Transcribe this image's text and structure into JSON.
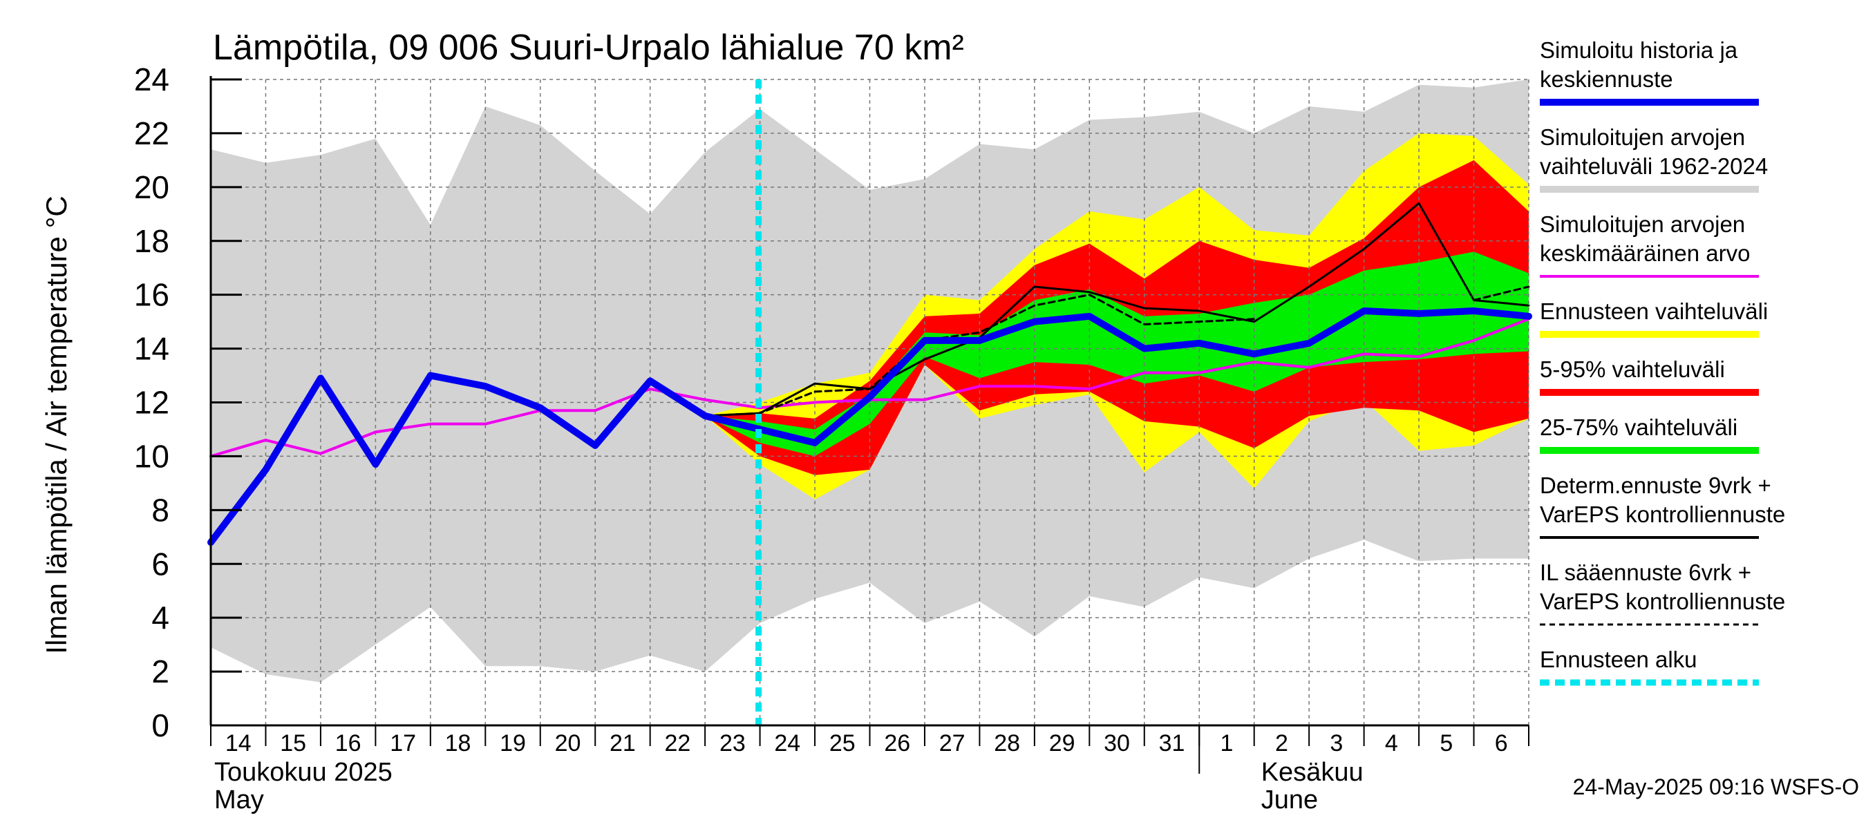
{
  "chart_data": {
    "type": "line",
    "title": "Lämpötila, 09 006 Suuri-Urpalo lähialue 70 km²",
    "ylabel": "Ilman lämpötila / Air temperature   °C",
    "ylim": [
      0,
      24
    ],
    "yticks": [
      0,
      2,
      4,
      6,
      8,
      10,
      12,
      14,
      16,
      18,
      20,
      22,
      24
    ],
    "x_tick_labels": [
      "14",
      "15",
      "16",
      "17",
      "18",
      "19",
      "20",
      "21",
      "22",
      "23",
      "24",
      "25",
      "26",
      "27",
      "28",
      "29",
      "30",
      "31",
      "1",
      "2",
      "3",
      "4",
      "5",
      "6"
    ],
    "month_labels": [
      {
        "fi": "Toukokuu  2025",
        "en": "May"
      },
      {
        "fi": "Kesäkuu",
        "en": "June"
      }
    ],
    "x": [
      "2025-05-14",
      "2025-05-15",
      "2025-05-16",
      "2025-05-17",
      "2025-05-18",
      "2025-05-19",
      "2025-05-20",
      "2025-05-21",
      "2025-05-22",
      "2025-05-23",
      "2025-05-24",
      "2025-05-25",
      "2025-05-26",
      "2025-05-27",
      "2025-05-28",
      "2025-05-29",
      "2025-05-30",
      "2025-05-31",
      "2025-06-01",
      "2025-06-02",
      "2025-06-03",
      "2025-06-04",
      "2025-06-05",
      "2025-06-06",
      "2025-06-07"
    ],
    "forecast_start": "2025-05-24",
    "grid": true,
    "legend_position": "right",
    "series": [
      {
        "name": "Simuloitujen arvojen vaihteluväli 1962-2024",
        "color": "#d3d3d3",
        "type": "band",
        "upper": [
          21.4,
          20.9,
          21.2,
          21.8,
          18.6,
          23.0,
          22.3,
          20.6,
          19.0,
          21.3,
          22.9,
          21.4,
          19.9,
          20.3,
          21.6,
          21.4,
          22.5,
          22.6,
          22.8,
          22.0,
          23.0,
          22.8,
          23.8,
          23.7,
          24.0
        ],
        "lower": [
          2.9,
          1.9,
          1.6,
          3.0,
          4.4,
          2.2,
          2.2,
          2.0,
          2.6,
          2.0,
          3.8,
          4.7,
          5.3,
          3.8,
          4.6,
          3.3,
          4.8,
          4.4,
          5.5,
          5.1,
          6.2,
          6.9,
          6.1,
          6.2,
          6.2
        ]
      },
      {
        "name": "Ennusteen vaihteluväli",
        "color": "#ffff00",
        "type": "band",
        "upper": [
          null,
          null,
          null,
          null,
          null,
          null,
          null,
          null,
          null,
          11.5,
          12.0,
          12.7,
          13.1,
          16.0,
          15.8,
          17.7,
          19.1,
          18.8,
          20.0,
          18.4,
          18.2,
          20.6,
          22.0,
          21.9,
          20.1
        ],
        "lower": [
          null,
          null,
          null,
          null,
          null,
          null,
          null,
          null,
          null,
          11.5,
          9.7,
          8.4,
          9.5,
          13.4,
          11.4,
          11.9,
          12.3,
          9.4,
          10.9,
          8.8,
          11.3,
          12.1,
          10.2,
          10.4,
          11.4
        ]
      },
      {
        "name": "5-95% vaihteluväli",
        "color": "#ff0000",
        "type": "band",
        "upper": [
          null,
          null,
          null,
          null,
          null,
          null,
          null,
          null,
          null,
          11.5,
          11.6,
          11.4,
          12.8,
          15.2,
          15.3,
          17.1,
          17.9,
          16.6,
          18.0,
          17.3,
          17.0,
          18.1,
          20.0,
          21.0,
          19.1
        ],
        "lower": [
          null,
          null,
          null,
          null,
          null,
          null,
          null,
          null,
          null,
          11.5,
          10.0,
          9.3,
          9.5,
          13.4,
          11.7,
          12.3,
          12.4,
          11.3,
          11.1,
          10.3,
          11.5,
          11.8,
          11.7,
          10.9,
          11.4
        ]
      },
      {
        "name": "25-75% vaihteluväli",
        "color": "#00ee00",
        "type": "band",
        "upper": [
          null,
          null,
          null,
          null,
          null,
          null,
          null,
          null,
          null,
          11.5,
          11.3,
          11.0,
          12.3,
          14.6,
          14.5,
          15.8,
          16.2,
          15.2,
          15.3,
          15.7,
          16.0,
          16.9,
          17.2,
          17.6,
          16.8
        ],
        "lower": [
          null,
          null,
          null,
          null,
          null,
          null,
          null,
          null,
          null,
          11.5,
          10.5,
          10.0,
          11.2,
          13.7,
          12.9,
          13.5,
          13.4,
          12.7,
          13.0,
          12.4,
          13.3,
          13.5,
          13.6,
          13.8,
          13.9
        ]
      },
      {
        "name": "Simuloitujen arvojen keskimääräinen arvo",
        "color": "#ee00ee",
        "type": "line",
        "values": [
          10.0,
          10.6,
          10.1,
          10.9,
          11.2,
          11.2,
          11.7,
          11.7,
          12.5,
          12.1,
          11.8,
          12.0,
          12.1,
          12.1,
          12.6,
          12.6,
          12.5,
          13.1,
          13.1,
          13.5,
          13.3,
          13.8,
          13.7,
          14.3,
          15.1
        ]
      },
      {
        "name": "Determ.ennuste 9vrk + VarEPS kontrolliennuste",
        "color": "#000000",
        "type": "line",
        "values": [
          null,
          null,
          null,
          null,
          null,
          null,
          null,
          null,
          null,
          11.5,
          11.6,
          12.7,
          12.5,
          13.6,
          14.4,
          16.3,
          16.1,
          15.5,
          15.4,
          15.0,
          16.3,
          17.7,
          19.4,
          15.8,
          15.6
        ]
      },
      {
        "name": "IL sääennuste 6vrk  + VarEPS kontrolliennuste",
        "color": "#000000",
        "type": "dashed",
        "values": [
          null,
          null,
          null,
          null,
          null,
          null,
          null,
          null,
          null,
          11.5,
          11.6,
          12.4,
          12.5,
          14.3,
          14.6,
          15.6,
          16.0,
          14.9,
          15.0,
          15.1,
          null,
          null,
          null,
          15.8,
          16.3
        ]
      },
      {
        "name": "Simuloitu historia ja keskiennuste",
        "color": "#0000ee",
        "type": "line",
        "values": [
          6.8,
          9.5,
          12.9,
          9.7,
          13.0,
          12.6,
          11.8,
          10.4,
          12.8,
          11.5,
          11.0,
          10.5,
          12.2,
          14.3,
          14.3,
          15.0,
          15.2,
          14.0,
          14.2,
          13.8,
          14.2,
          15.4,
          15.3,
          15.4,
          15.2
        ]
      }
    ],
    "legend": [
      {
        "text": [
          "Simuloitu historia ja",
          "keskiennuste"
        ],
        "color": "#0000ee",
        "style": "thick"
      },
      {
        "text": [
          "Simuloitujen arvojen",
          "vaihteluväli 1962-2024"
        ],
        "color": "#d3d3d3",
        "style": "thick"
      },
      {
        "text": [
          "Simuloitujen arvojen",
          "keskimääräinen arvo"
        ],
        "color": "#ee00ee",
        "style": "thin"
      },
      {
        "text": [
          "Ennusteen vaihteluväli"
        ],
        "color": "#ffff00",
        "style": "thick"
      },
      {
        "text": [
          "5-95% vaihteluväli"
        ],
        "color": "#ff0000",
        "style": "thick"
      },
      {
        "text": [
          "25-75% vaihteluväli"
        ],
        "color": "#00ee00",
        "style": "thick"
      },
      {
        "text": [
          "Determ.ennuste 9vrk +",
          "VarEPS kontrolliennuste"
        ],
        "color": "#000000",
        "style": "thin"
      },
      {
        "text": [
          "IL sääennuste 6vrk  +",
          "  VarEPS kontrolliennuste"
        ],
        "color": "#000000",
        "style": "dashed"
      },
      {
        "text": [
          "Ennusteen alku"
        ],
        "color": "#00e5ee",
        "style": "cyan-dash"
      }
    ]
  },
  "footer": "24-May-2025 09:16 WSFS-O"
}
